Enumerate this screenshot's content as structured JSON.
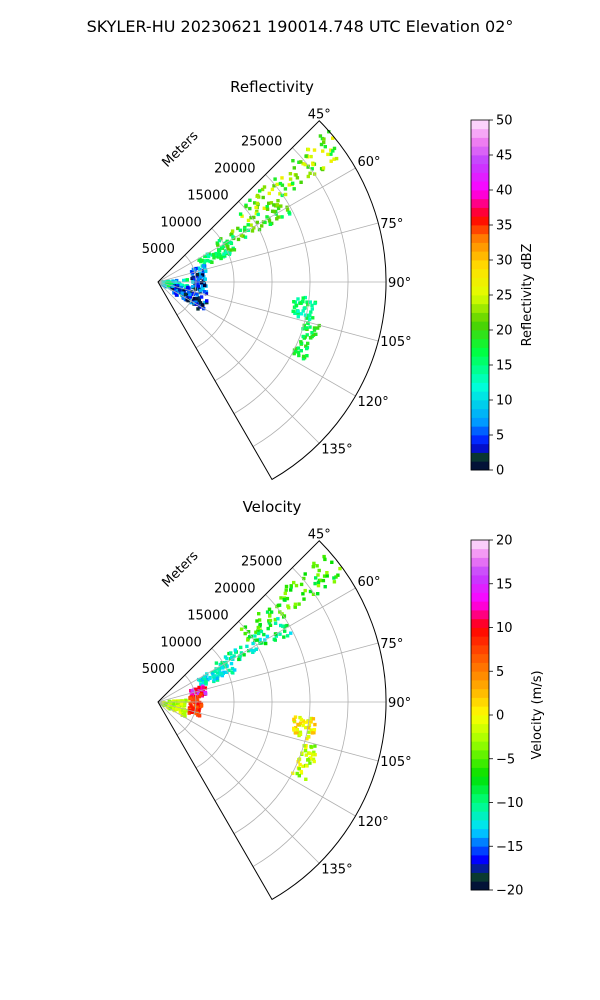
{
  "figure": {
    "suptitle": "SKYLER-HU  20230621  190014.748 UTC Elevation 02°"
  },
  "chart_data": [
    {
      "type": "heatmap",
      "projection": "polar-sector",
      "title": "Reflectivity",
      "range_label": "Meters",
      "range_ticks": [
        5000,
        10000,
        15000,
        20000,
        25000
      ],
      "range_max": 30000,
      "azimuth_range_deg": [
        45,
        150
      ],
      "azimuth_ticks": [
        "45°",
        "60°",
        "75°",
        "90°",
        "105°",
        "120°",
        "135°"
      ],
      "grid": true,
      "colorbar": {
        "label": "Reflectivity dBZ",
        "range": [
          0,
          50
        ],
        "ticks": [
          "0",
          "5",
          "10",
          "15",
          "20",
          "25",
          "30",
          "35",
          "40",
          "45",
          "50"
        ],
        "stops": [
          {
            "v": 0,
            "c": "#00003a"
          },
          {
            "v": 2,
            "c": "#0a3a30"
          },
          {
            "v": 3.5,
            "c": "#0000ff"
          },
          {
            "v": 7,
            "c": "#00a0ff"
          },
          {
            "v": 12,
            "c": "#00ffd8"
          },
          {
            "v": 17,
            "c": "#00ff40"
          },
          {
            "v": 21,
            "c": "#50d000"
          },
          {
            "v": 25,
            "c": "#e0ff00"
          },
          {
            "v": 29,
            "c": "#ffe000"
          },
          {
            "v": 33,
            "c": "#ff8000"
          },
          {
            "v": 36,
            "c": "#ff0000"
          },
          {
            "v": 40,
            "c": "#ff00ff"
          },
          {
            "v": 44,
            "c": "#c040ff"
          },
          {
            "v": 47,
            "c": "#f080f0"
          },
          {
            "v": 50,
            "c": "#ffe8ff"
          }
        ]
      },
      "echo_regions": [
        {
          "az": [
            48,
            56
          ],
          "r": [
            14000,
            30000
          ],
          "value": 22,
          "spread": 5
        },
        {
          "az": [
            55,
            63
          ],
          "r": [
            9000,
            20000
          ],
          "value": 19,
          "spread": 5
        },
        {
          "az": [
            60,
            70
          ],
          "r": [
            6000,
            11000
          ],
          "value": 17,
          "spread": 4
        },
        {
          "az": [
            70,
            100
          ],
          "r": [
            4500,
            6500
          ],
          "value": 5,
          "spread": 6
        },
        {
          "az": [
            85,
            120
          ],
          "r": [
            500,
            4000
          ],
          "value": 12,
          "spread": 6
        },
        {
          "az": [
            100,
            125
          ],
          "r": [
            2000,
            7000
          ],
          "value": 4,
          "spread": 4
        },
        {
          "az": [
            105,
            118
          ],
          "r": [
            20000,
            22000
          ],
          "value": 18,
          "spread": 3
        },
        {
          "az": [
            96,
            104
          ],
          "r": [
            18000,
            21000
          ],
          "value": 15,
          "spread": 3
        }
      ]
    },
    {
      "type": "heatmap",
      "projection": "polar-sector",
      "title": "Velocity",
      "range_label": "Meters",
      "range_ticks": [
        5000,
        10000,
        15000,
        20000,
        25000
      ],
      "range_max": 30000,
      "azimuth_range_deg": [
        45,
        150
      ],
      "azimuth_ticks": [
        "45°",
        "60°",
        "75°",
        "90°",
        "105°",
        "120°",
        "135°"
      ],
      "grid": true,
      "colorbar": {
        "label": "Velocity (m/s)",
        "range": [
          -20,
          20
        ],
        "ticks": [
          "−20",
          "−15",
          "−10",
          "−5",
          "0",
          "5",
          "10",
          "15",
          "20"
        ],
        "stops": [
          {
            "v": -20,
            "c": "#00003a"
          },
          {
            "v": -18.5,
            "c": "#0a3a30"
          },
          {
            "v": -16.5,
            "c": "#0000ff"
          },
          {
            "v": -13,
            "c": "#00e0ff"
          },
          {
            "v": -10,
            "c": "#00ff80"
          },
          {
            "v": -7,
            "c": "#00e000"
          },
          {
            "v": -3,
            "c": "#a0ff00"
          },
          {
            "v": 0,
            "c": "#ffff00"
          },
          {
            "v": 3,
            "c": "#ffb000"
          },
          {
            "v": 7,
            "c": "#ff5000"
          },
          {
            "v": 10,
            "c": "#ff0000"
          },
          {
            "v": 13,
            "c": "#ff00ff"
          },
          {
            "v": 16,
            "c": "#c040ff"
          },
          {
            "v": 18,
            "c": "#f080f0"
          },
          {
            "v": 20,
            "c": "#ffe8ff"
          }
        ]
      },
      "echo_regions": [
        {
          "az": [
            48,
            56
          ],
          "r": [
            14000,
            30000
          ],
          "value": -6,
          "spread": 3
        },
        {
          "az": [
            55,
            63
          ],
          "r": [
            9000,
            20000
          ],
          "value": -10,
          "spread": 3
        },
        {
          "az": [
            60,
            70
          ],
          "r": [
            6000,
            11000
          ],
          "value": -12,
          "spread": 2
        },
        {
          "az": [
            70,
            82
          ],
          "r": [
            4500,
            6500
          ],
          "value": 12,
          "spread": 4
        },
        {
          "az": [
            85,
            120
          ],
          "r": [
            500,
            4000
          ],
          "value": -2,
          "spread": 2
        },
        {
          "az": [
            80,
            110
          ],
          "r": [
            4200,
            5800
          ],
          "value": 8,
          "spread": 2
        },
        {
          "az": [
            105,
            118
          ],
          "r": [
            20000,
            22000
          ],
          "value": -2,
          "spread": 3
        },
        {
          "az": [
            96,
            104
          ],
          "r": [
            18000,
            21000
          ],
          "value": 0,
          "spread": 3
        }
      ]
    }
  ]
}
